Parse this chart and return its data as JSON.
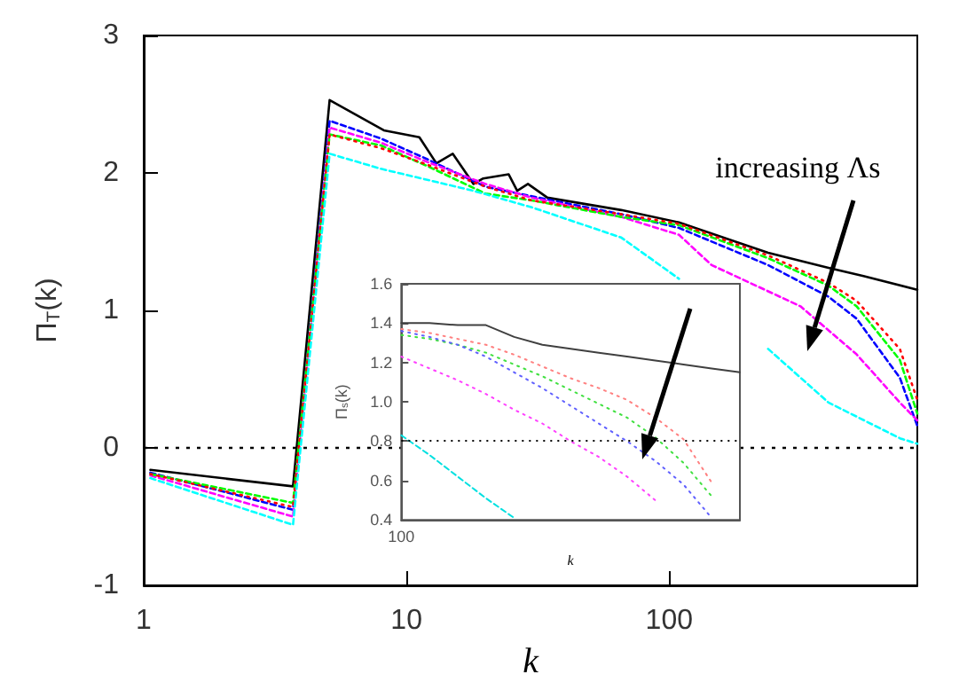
{
  "chart_data": [
    {
      "type": "line",
      "xlabel": "k",
      "ylabel": "Π$_{T}$(k)",
      "log": "x",
      "xlim": [
        1,
        880
      ],
      "xticks": [
        1,
        10,
        100
      ],
      "ylim": [
        -1,
        3
      ],
      "yticks": [
        -1,
        0,
        1,
        2,
        3
      ],
      "annotations": [
        {
          "text": "increasing Λs",
          "x": 418,
          "y": 1.3
        }
      ],
      "ref_lines": [
        {
          "axis": "y",
          "value": 0,
          "color": "#000000",
          "line_style": "dotted"
        }
      ],
      "series": [
        {
          "color": "#000000",
          "line_style": "solid",
          "x": [
            1.06,
            3.7,
            5.1,
            8.2,
            11.2,
            13,
            15,
            18,
            19.6,
            24.5,
            26.4,
            29,
            34.4,
            65.7,
            109,
            238,
            404,
            549,
            880
          ],
          "values": [
            -0.16,
            -0.28,
            2.53,
            2.31,
            2.26,
            2.07,
            2.14,
            1.92,
            1.96,
            1.99,
            1.87,
            1.92,
            1.82,
            1.73,
            1.64,
            1.42,
            1.31,
            1.25,
            1.15
          ]
        },
        {
          "color": "#0000ff",
          "line_style": "dashed",
          "x": [
            1.06,
            3.7,
            5.1,
            8,
            12,
            20,
            30,
            65.7,
            109,
            238,
            404,
            517,
            755,
            880
          ],
          "values": [
            -0.18,
            -0.45,
            2.38,
            2.25,
            2.1,
            1.9,
            1.83,
            1.7,
            1.6,
            1.33,
            1.1,
            0.94,
            0.51,
            0.16
          ]
        },
        {
          "color": "#ff00ff",
          "line_style": "dashed",
          "x": [
            1.06,
            3.7,
            5.1,
            8,
            12,
            20,
            30,
            65.7,
            109,
            145,
            316,
            517,
            755,
            880
          ],
          "values": [
            -0.2,
            -0.5,
            2.33,
            2.22,
            2.08,
            1.92,
            1.82,
            1.68,
            1.55,
            1.33,
            1.03,
            0.68,
            0.33,
            0.2
          ]
        },
        {
          "color": "#00ff00",
          "line_style": "dashed",
          "x": [
            1.06,
            3.7,
            5.1,
            8,
            12,
            20,
            30,
            65.7,
            109,
            238,
            404,
            517,
            755,
            880
          ],
          "values": [
            -0.19,
            -0.4,
            2.28,
            2.2,
            2.05,
            1.85,
            1.8,
            1.68,
            1.62,
            1.38,
            1.18,
            1.03,
            0.64,
            0.25
          ]
        },
        {
          "color": "#ff0000",
          "line_style": "dotted",
          "x": [
            1.06,
            3.7,
            5.1,
            8,
            12,
            20,
            30,
            65.7,
            109,
            238,
            404,
            517,
            755,
            880
          ],
          "values": [
            -0.19,
            -0.43,
            2.28,
            2.18,
            2.06,
            1.9,
            1.8,
            1.7,
            1.63,
            1.4,
            1.2,
            1.07,
            0.72,
            0.35
          ]
        },
        {
          "color": "#00ffff",
          "line_style": "dashed",
          "x": [
            1.06,
            3.7,
            5.1,
            8,
            18,
            30,
            65.7,
            109,
            145,
            238,
            404,
            755,
            880
          ],
          "values": [
            -0.22,
            -0.56,
            2.14,
            2.03,
            1.87,
            1.75,
            1.53,
            1.23,
            null,
            0.72,
            0.33,
            0.07,
            0.03
          ]
        }
      ]
    },
    {
      "type": "line",
      "xlabel": "k",
      "ylabel": "Π$_{s}$(k)",
      "categories": [
        "100",
        null,
        null,
        null,
        null,
        null,
        null,
        null,
        null,
        null,
        null,
        null,
        null
      ],
      "ylim": [
        0.4,
        1.6
      ],
      "yticks": [
        0.4,
        0.6,
        0.8,
        {
          "value": 1,
          "label": "1.0"
        },
        1.2,
        1.4,
        1.6
      ],
      "ref_lines": [
        {
          "axis": "y",
          "value": 0.8,
          "color": "#000000",
          "line_style": "dotted"
        }
      ],
      "series": [
        {
          "color": "#404040",
          "line_style": "solid",
          "values": [
            1.4,
            1.4,
            1.39,
            1.39,
            1.33,
            1.29,
            1.27,
            1.25,
            1.23,
            1.21,
            1.19,
            1.17,
            1.15
          ]
        },
        {
          "color": "#ff8080",
          "line_style": "dotted",
          "values": [
            1.37,
            1.35,
            1.32,
            1.29,
            1.24,
            1.18,
            1.12,
            1.07,
            1.01,
            0.92,
            0.81,
            0.59,
            null
          ]
        },
        {
          "color": "#40e040",
          "line_style": "dotted",
          "values": [
            1.34,
            1.32,
            1.29,
            1.25,
            1.19,
            1.13,
            1.06,
            0.99,
            0.92,
            0.82,
            0.69,
            0.52,
            null
          ]
        },
        {
          "color": "#6060ff",
          "line_style": "dotted",
          "values": [
            1.36,
            1.33,
            1.29,
            1.23,
            1.15,
            1.07,
            0.98,
            0.89,
            0.8,
            0.7,
            0.58,
            0.41,
            null
          ]
        },
        {
          "color": "#ff40ff",
          "line_style": "dotted",
          "values": [
            1.23,
            1.17,
            1.11,
            1.04,
            0.96,
            0.89,
            0.8,
            0.72,
            0.62,
            0.5,
            null,
            null,
            null
          ]
        },
        {
          "color": "#00e0e0",
          "line_style": "dashed",
          "values": [
            0.83,
            0.73,
            0.62,
            0.51,
            0.41,
            null,
            null,
            null,
            null,
            null,
            null,
            null,
            null
          ]
        }
      ]
    }
  ]
}
